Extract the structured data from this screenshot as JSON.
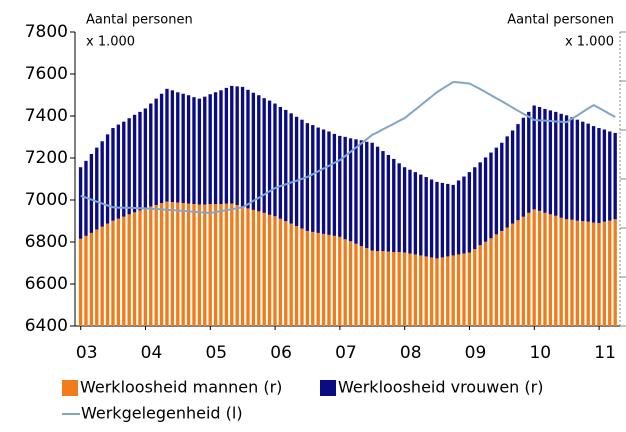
{
  "chart_data": {
    "type": "bar_line",
    "left_axis_label": [
      "Aantal personen",
      "x 1.000"
    ],
    "right_axis_label": [
      "Aantal personen",
      "x 1.000"
    ],
    "categories": [
      "03",
      null,
      null,
      null,
      null,
      null,
      null,
      null,
      null,
      null,
      null,
      null,
      "04",
      null,
      null,
      null,
      null,
      null,
      null,
      null,
      null,
      null,
      null,
      null,
      "05",
      null,
      null,
      null,
      null,
      null,
      null,
      null,
      null,
      null,
      null,
      null,
      "06",
      null,
      null,
      null,
      null,
      null,
      null,
      null,
      null,
      null,
      null,
      null,
      "07",
      null,
      null,
      null,
      null,
      null,
      null,
      null,
      null,
      null,
      null,
      null,
      "08",
      null,
      null,
      null,
      null,
      null,
      null,
      null,
      null,
      null,
      null,
      null,
      "09",
      null,
      null,
      null,
      null,
      null,
      null,
      null,
      null,
      null,
      null,
      null,
      "10",
      null,
      null,
      null,
      null,
      null,
      null,
      null,
      null,
      null,
      null,
      null,
      "11",
      null,
      null,
      null
    ],
    "series": [
      {
        "name": "Werkloosheid mannen (r)",
        "kind": "bar",
        "axis": "y2",
        "color": "#f07d1a",
        "values": [
          178,
          184,
          190,
          197,
          203,
          209,
          215,
          219,
          223,
          228,
          232,
          236,
          240,
          244,
          247,
          251,
          254,
          253,
          252,
          251,
          250,
          249,
          248,
          248,
          249,
          249,
          249,
          250,
          250,
          247,
          244,
          240,
          237,
          234,
          231,
          227,
          224,
          219,
          214,
          209,
          204,
          199,
          194,
          192,
          190,
          188,
          186,
          184,
          182,
          177,
          173,
          168,
          163,
          159,
          154,
          153,
          153,
          152,
          151,
          151,
          150,
          148,
          146,
          144,
          142,
          140,
          138,
          140,
          142,
          144,
          146,
          148,
          150,
          157,
          165,
          172,
          179,
          187,
          194,
          201,
          209,
          216,
          223,
          231,
          238,
          235,
          231,
          228,
          225,
          221,
          218,
          217,
          215,
          214,
          213,
          211,
          210,
          213,
          215,
          218
        ]
      },
      {
        "name": "Werkloosheid vrouwen (r)",
        "kind": "bar",
        "axis": "y2",
        "color": "#0b0b82",
        "values": [
          146,
          153,
          161,
          167,
          174,
          182,
          189,
          192,
          194,
          196,
          199,
          201,
          204,
          210,
          217,
          223,
          230,
          228,
          225,
          223,
          221,
          218,
          216,
          220,
          224,
          228,
          232,
          236,
          240,
          242,
          244,
          242,
          239,
          237,
          234,
          233,
          230,
          228,
          227,
          225,
          223,
          222,
          220,
          218,
          215,
          213,
          211,
          208,
          206,
          209,
          210,
          213,
          216,
          217,
          220,
          213,
          204,
          197,
          190,
          181,
          174,
          171,
          168,
          165,
          162,
          159,
          156,
          152,
          148,
          144,
          151,
          157,
          164,
          167,
          169,
          172,
          175,
          177,
          180,
          186,
          190,
          196,
          202,
          206,
          212,
          212,
          212,
          212,
          212,
          212,
          212,
          209,
          206,
          203,
          200,
          197,
          194,
          188,
          182,
          176
        ]
      },
      {
        "name": "Werkgelegenheid (l)",
        "kind": "line",
        "axis": "y",
        "color": "#7fa6c9",
        "values": [
          7020,
          7011,
          7002,
          6992,
          6983,
          6974,
          6965,
          6964,
          6963,
          6963,
          6962,
          6961,
          6960,
          6958,
          6957,
          6955,
          6953,
          6952,
          6950,
          6948,
          6946,
          6944,
          6942,
          6940,
          6938,
          6943,
          6947,
          6952,
          6956,
          6961,
          6965,
          6980,
          6996,
          7011,
          7026,
          7042,
          7057,
          7066,
          7075,
          7084,
          7092,
          7101,
          7110,
          7123,
          7137,
          7150,
          7163,
          7177,
          7190,
          7210,
          7230,
          7250,
          7270,
          7290,
          7310,
          7323,
          7337,
          7350,
          7363,
          7377,
          7390,
          7411,
          7431,
          7452,
          7473,
          7493,
          7514,
          7530,
          7546,
          7562,
          7560,
          7557,
          7555,
          7541,
          7528,
          7514,
          7499,
          7484,
          7470,
          7455,
          7440,
          7425,
          7410,
          7396,
          7381,
          7379,
          7378,
          7376,
          7374,
          7373,
          7371,
          7387,
          7403,
          7420,
          7436,
          7452,
          7438,
          7424,
          7409,
          7395
        ]
      }
    ],
    "ylim": [
      6400,
      7800
    ],
    "yticks": [
      6400,
      6600,
      6800,
      7000,
      7200,
      7400,
      7600,
      7800
    ],
    "y2lim": [
      0,
      600
    ],
    "y2ticks": [
      0,
      100,
      200,
      300,
      400,
      500,
      600
    ]
  }
}
